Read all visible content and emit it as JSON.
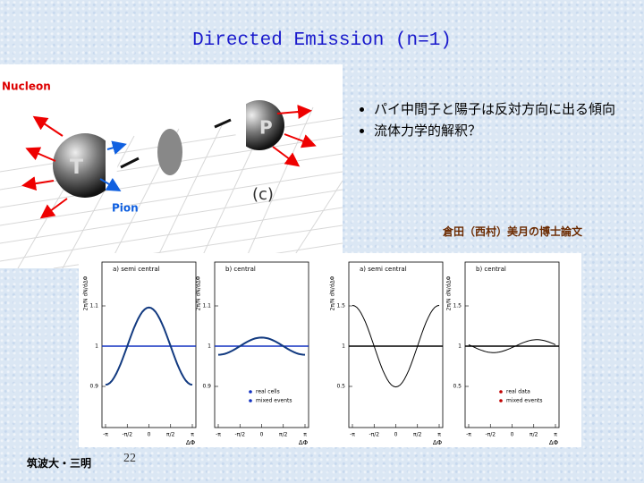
{
  "title": "Directed Emission (n=1)",
  "figure": {
    "nucleon": "Nucleon",
    "pion": "Pion",
    "target": "T",
    "projectile": "P",
    "panel": "(c)"
  },
  "bullets": [
    "パイ中間子と陽子は反対方向に出る傾向",
    "流体力学的解釈？"
  ],
  "citation": "倉田（西村）美月の博士論文",
  "plots": [
    {
      "label": "a) semi central",
      "y_label": "2π/N dN/dΔΦ",
      "yticks": [
        "0.9",
        "1",
        "1.1"
      ]
    },
    {
      "label": "b) central",
      "y_label": "2π/N dN/dΔΦ",
      "yticks": [
        "0.9",
        "1",
        "1.1"
      ],
      "legend": [
        "real cells",
        "mixed events"
      ]
    },
    {
      "label": "a) semi central",
      "y_label": "2π/N dN/dΔΦ",
      "yticks": [
        "0.5",
        "1",
        "1.5"
      ]
    },
    {
      "label": "b) central",
      "y_label": "2π/N dN/dΔΦ",
      "yticks": [
        "0.5",
        "1",
        "1.5"
      ],
      "legend": [
        "real data",
        "mixed events"
      ]
    }
  ],
  "x_label": "ΔΦ",
  "xticks": [
    "-π",
    "-π/2",
    "0",
    "π/2",
    "π"
  ],
  "footer": {
    "affiliation": "筑波大・三明",
    "page": "22"
  }
}
